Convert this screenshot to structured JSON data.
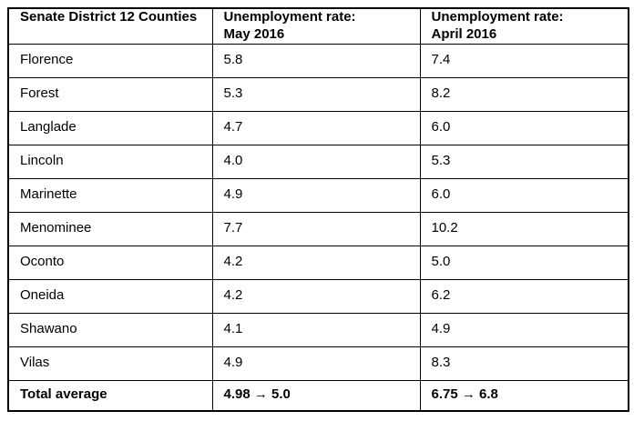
{
  "table": {
    "header": {
      "counties": "Senate District 12 Counties",
      "may_line1": "Unemployment rate:",
      "may_line2": "May 2016",
      "april_line1": "Unemployment rate:",
      "april_line2": "April 2016"
    },
    "rows": [
      {
        "county": "Florence",
        "may": "5.8",
        "april": "7.4"
      },
      {
        "county": "Forest",
        "may": "5.3",
        "april": "8.2"
      },
      {
        "county": "Langlade",
        "may": "4.7",
        "april": "6.0"
      },
      {
        "county": "Lincoln",
        "may": "4.0",
        "april": "5.3"
      },
      {
        "county": "Marinette",
        "may": "4.9",
        "april": "6.0"
      },
      {
        "county": "Menominee",
        "may": "7.7",
        "april": "10.2"
      },
      {
        "county": "Oconto",
        "may": "4.2",
        "april": "5.0"
      },
      {
        "county": "Oneida",
        "may": "4.2",
        "april": "6.2"
      },
      {
        "county": "Shawano",
        "may": "4.1",
        "april": "4.9"
      },
      {
        "county": "Vilas",
        "may": "4.9",
        "april": "8.3"
      }
    ],
    "total": {
      "label": "Total average",
      "may": "4.98 → 5.0",
      "april": "6.75 → 6.8"
    },
    "colors": {
      "border": "#000000",
      "text": "#000000",
      "background": "#ffffff"
    }
  }
}
